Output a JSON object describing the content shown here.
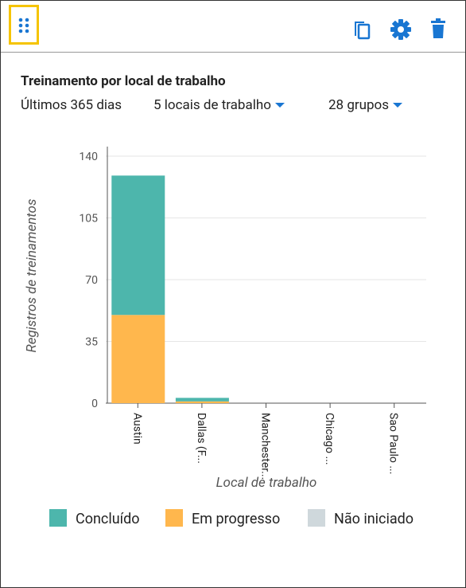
{
  "header": {
    "title": "Treinamento por local de trabalho",
    "filters": [
      "Últimos 365 dias",
      "5 locais de trabalho",
      "28 grupos"
    ]
  },
  "chart_data": {
    "type": "stacked_bar",
    "x_label": "Local de trabalho",
    "y_label": "Registros de treinamentos",
    "categories": [
      "Austin",
      "Dallas (F...",
      "Manchester...",
      "Chicago ...",
      "Sao Paulo ..."
    ],
    "series": [
      {
        "name": "Concluído",
        "color": "#4db6ac",
        "values": [
          79,
          2,
          0,
          0,
          0
        ]
      },
      {
        "name": "Em progresso",
        "color": "#ffb74d",
        "values": [
          50,
          1,
          0,
          0,
          0
        ]
      },
      {
        "name": "Não iniciado",
        "color": "#cfd8dc",
        "values": [
          0,
          0,
          0,
          0,
          0
        ]
      }
    ],
    "ylim": [
      0,
      140
    ],
    "yticks": [
      0,
      35,
      70,
      105,
      140
    ],
    "grid": true
  }
}
